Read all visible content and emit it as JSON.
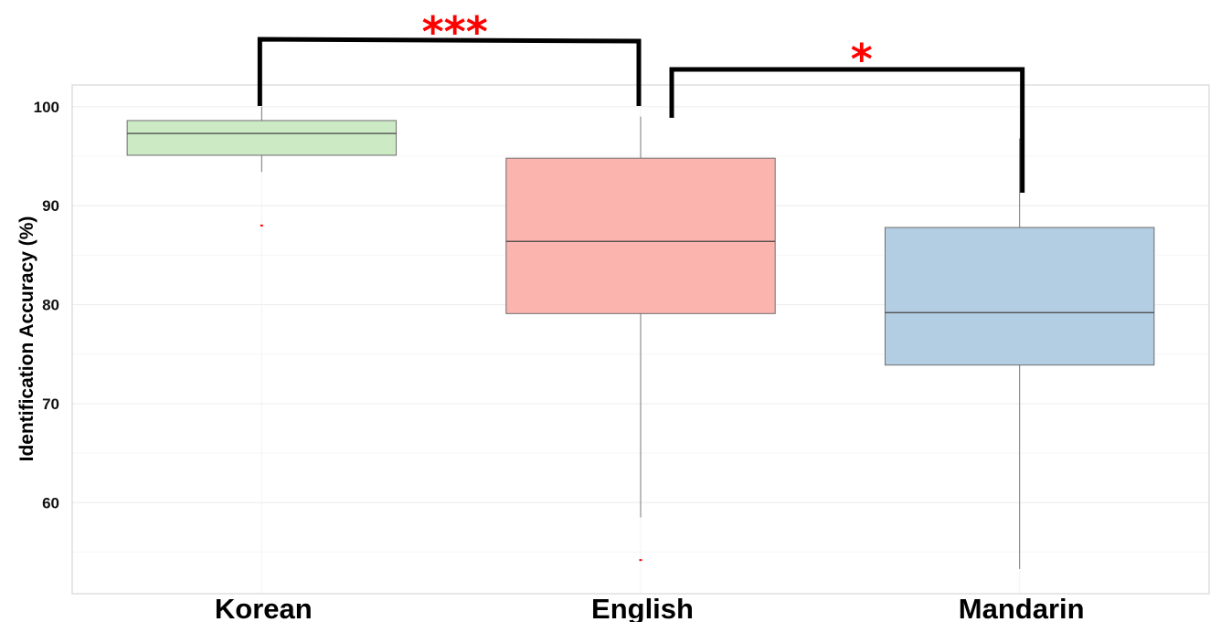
{
  "chart_data": {
    "type": "box",
    "title": "",
    "xlabel": "",
    "ylabel": "Identification Accuracy (%)",
    "ylim": [
      50.8,
      102.2
    ],
    "yticks": [
      60,
      70,
      80,
      90,
      100
    ],
    "grid": true,
    "categories": [
      "Korean",
      "English",
      "Mandarin"
    ],
    "boxes": [
      {
        "category": "Korean",
        "whisker_low": 93.4,
        "q1": 95.1,
        "median": 97.3,
        "q3": 98.6,
        "whisker_high": 100,
        "outliers": [
          88.0
        ],
        "color": "#ccebc5"
      },
      {
        "category": "English",
        "whisker_low": 58.5,
        "q1": 79.1,
        "median": 86.4,
        "q3": 94.8,
        "whisker_high": 99.0,
        "outliers": [
          54.2
        ],
        "color": "#fbb4ae"
      },
      {
        "category": "Mandarin",
        "whisker_low": 53.3,
        "q1": 73.9,
        "median": 79.2,
        "q3": 87.8,
        "whisker_high": 96.8,
        "outliers": [],
        "color": "#b3cde3"
      }
    ],
    "significance": [
      {
        "from": "Korean",
        "to": "English",
        "label": "***"
      },
      {
        "from": "English",
        "to": "Mandarin",
        "label": "*"
      }
    ],
    "colors": {
      "significance": "#ff0000",
      "bracket": "#000000",
      "outlier": "#ff0000"
    }
  }
}
